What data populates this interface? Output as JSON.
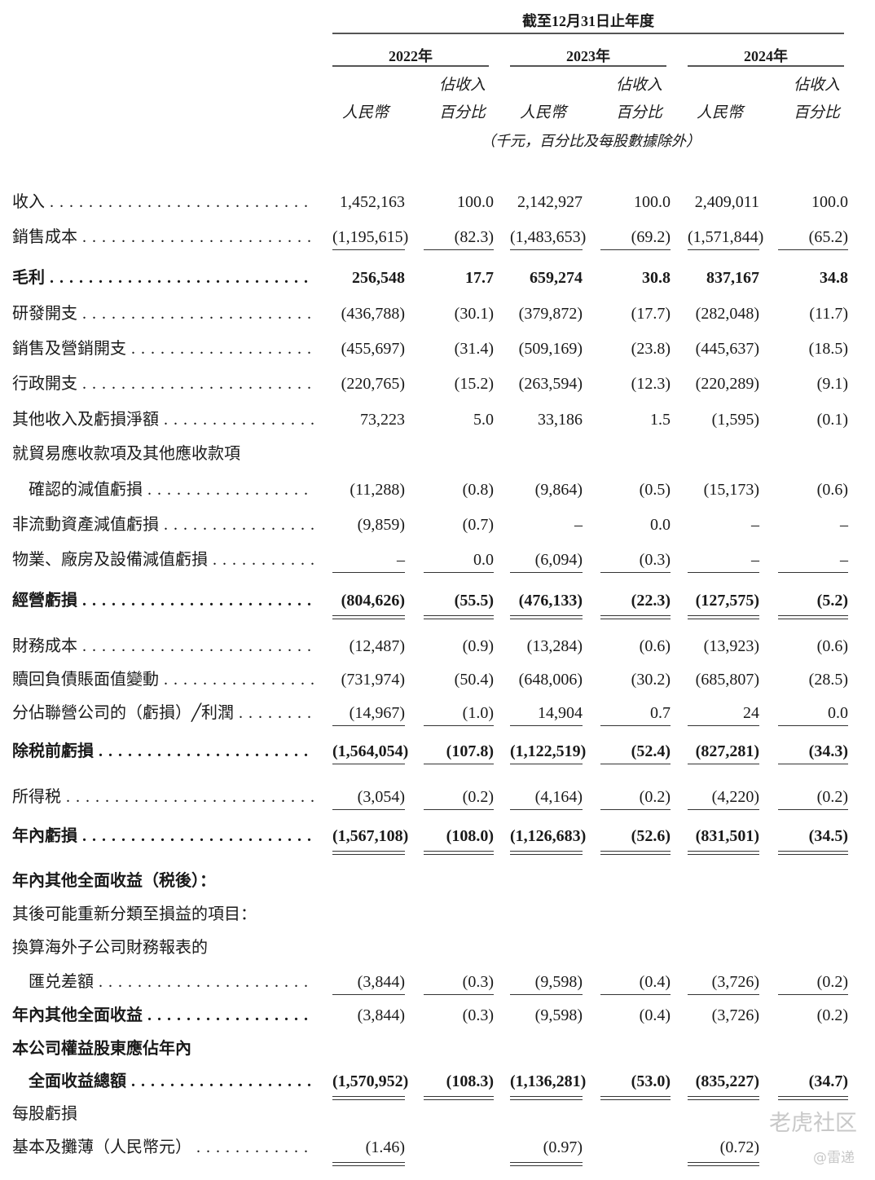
{
  "header": {
    "period_title": "截至12月31日止年度",
    "years": [
      "2022年",
      "2023年",
      "2024年"
    ],
    "col_pct_line1": "佔收入",
    "col_pct_line2": "百分比",
    "col_rmb": "人民幣",
    "unit_note": "（千元，百分比及每股數據除外）"
  },
  "rows": [
    {
      "label": "收入",
      "values": [
        "1,452,163",
        "100.0",
        "2,142,927",
        "100.0",
        "2,409,011",
        "100.0"
      ]
    },
    {
      "label": "銷售成本",
      "values": [
        "(1,195,615)",
        "(82.3)",
        "(1,483,653)",
        "(69.2)",
        "(1,571,844)",
        "(65.2)"
      ]
    },
    {
      "label": "毛利",
      "bold": true,
      "values": [
        "256,548",
        "17.7",
        "659,274",
        "30.8",
        "837,167",
        "34.8"
      ]
    },
    {
      "label": "研發開支",
      "values": [
        "(436,788)",
        "(30.1)",
        "(379,872)",
        "(17.7)",
        "(282,048)",
        "(11.7)"
      ]
    },
    {
      "label": "銷售及營銷開支",
      "values": [
        "(455,697)",
        "(31.4)",
        "(509,169)",
        "(23.8)",
        "(445,637)",
        "(18.5)"
      ]
    },
    {
      "label": "行政開支",
      "values": [
        "(220,765)",
        "(15.2)",
        "(263,594)",
        "(12.3)",
        "(220,289)",
        "(9.1)"
      ]
    },
    {
      "label": "其他收入及虧損淨額",
      "values": [
        "73,223",
        "5.0",
        "33,186",
        "1.5",
        "(1,595)",
        "(0.1)"
      ]
    },
    {
      "label": "就貿易應收款項及其他應收款項",
      "values": []
    },
    {
      "label": "確認的減值虧損",
      "indent": true,
      "values": [
        "(11,288)",
        "(0.8)",
        "(9,864)",
        "(0.5)",
        "(15,173)",
        "(0.6)"
      ]
    },
    {
      "label": "非流動資產減值虧損",
      "values": [
        "(9,859)",
        "(0.7)",
        "–",
        "0.0",
        "–",
        "–"
      ]
    },
    {
      "label": "物業、廠房及設備減值虧損",
      "values": [
        "–",
        "0.0",
        "(6,094)",
        "(0.3)",
        "–",
        "–"
      ]
    },
    {
      "label": "經營虧損",
      "bold": true,
      "values": [
        "(804,626)",
        "(55.5)",
        "(476,133)",
        "(22.3)",
        "(127,575)",
        "(5.2)"
      ]
    },
    {
      "label": "財務成本",
      "values": [
        "(12,487)",
        "(0.9)",
        "(13,284)",
        "(0.6)",
        "(13,923)",
        "(0.6)"
      ]
    },
    {
      "label": "贖回負債賬面值變動",
      "values": [
        "(731,974)",
        "(50.4)",
        "(648,006)",
        "(30.2)",
        "(685,807)",
        "(28.5)"
      ]
    },
    {
      "label": "分佔聯營公司的（虧損）╱利潤",
      "values": [
        "(14,967)",
        "(1.0)",
        "14,904",
        "0.7",
        "24",
        "0.0"
      ]
    },
    {
      "label": "除税前虧損",
      "bold": true,
      "values": [
        "(1,564,054)",
        "(107.8)",
        "(1,122,519)",
        "(52.4)",
        "(827,281)",
        "(34.3)"
      ]
    },
    {
      "label": "所得税",
      "values": [
        "(3,054)",
        "(0.2)",
        "(4,164)",
        "(0.2)",
        "(4,220)",
        "(0.2)"
      ]
    },
    {
      "label": "年內虧損",
      "bold": true,
      "values": [
        "(1,567,108)",
        "(108.0)",
        "(1,126,683)",
        "(52.6)",
        "(831,501)",
        "(34.5)"
      ]
    },
    {
      "label": "年內其他全面收益（税後）：",
      "bold": true,
      "values": []
    },
    {
      "label": "其後可能重新分類至損益的項目：",
      "values": []
    },
    {
      "label": "換算海外子公司財務報表的",
      "values": []
    },
    {
      "label": "匯兑差額",
      "indent": true,
      "values": [
        "(3,844)",
        "(0.3)",
        "(9,598)",
        "(0.4)",
        "(3,726)",
        "(0.2)"
      ]
    },
    {
      "label": "年內其他全面收益",
      "boldLabel": true,
      "values": [
        "(3,844)",
        "(0.3)",
        "(9,598)",
        "(0.4)",
        "(3,726)",
        "(0.2)"
      ]
    },
    {
      "label": "本公司權益股東應佔年內",
      "bold": true,
      "values": []
    },
    {
      "label": "全面收益總額",
      "bold": true,
      "indent": true,
      "values": [
        "(1,570,952)",
        "(108.3)",
        "(1,136,281)",
        "(53.0)",
        "(835,227)",
        "(34.7)"
      ]
    },
    {
      "label": "每股虧損",
      "values": []
    },
    {
      "label": "基本及攤薄（人民幣元）",
      "values": [
        "(1.46)",
        "",
        "(0.97)",
        "",
        "(0.72)",
        ""
      ]
    }
  ],
  "watermark": {
    "brand": "老虎社区",
    "author": "@雷递"
  }
}
